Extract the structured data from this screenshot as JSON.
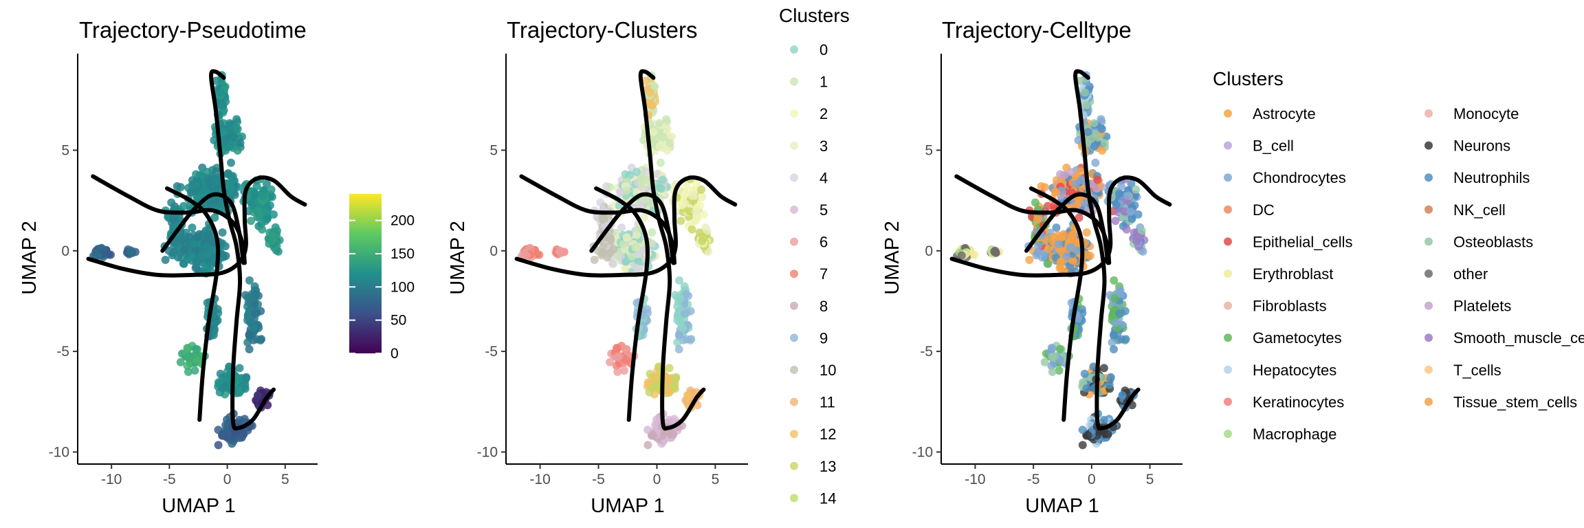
{
  "chart_data": [
    {
      "type": "scatter",
      "title": "Trajectory-Pseudotime",
      "xlabel": "UMAP 1",
      "ylabel": "UMAP 2",
      "xlim": [
        -12.8,
        7.8
      ],
      "ylim": [
        -10.6,
        9.8
      ],
      "x_ticks": [
        -10,
        -5,
        0,
        5
      ],
      "y_ticks": [
        -10,
        -5,
        0,
        5
      ],
      "grid": false,
      "color_scale": {
        "type": "continuous",
        "palette": "viridis",
        "range": [
          0,
          240
        ],
        "ticks": [
          0,
          50,
          100,
          150,
          200
        ],
        "legend_position": "right"
      }
    },
    {
      "type": "scatter",
      "title": "Trajectory-Clusters",
      "xlabel": "UMAP 1",
      "ylabel": "UMAP 2",
      "xlim": [
        -12.8,
        7.8
      ],
      "ylim": [
        -10.6,
        9.8
      ],
      "x_ticks": [
        -10,
        -5,
        0,
        5
      ],
      "y_ticks": [
        -10,
        -5,
        0,
        5
      ],
      "grid": false,
      "legend": {
        "title": "Clusters",
        "position": "right",
        "entries": [
          {
            "label": "0",
            "color": "#8ed3c7"
          },
          {
            "label": "1",
            "color": "#c9e6b4"
          },
          {
            "label": "2",
            "color": "#f3f5b4"
          },
          {
            "label": "3",
            "color": "#e8efbe"
          },
          {
            "label": "4",
            "color": "#d6d3e0"
          },
          {
            "label": "5",
            "color": "#d7b8d6"
          },
          {
            "label": "6",
            "color": "#ec9c9c"
          },
          {
            "label": "7",
            "color": "#f07f72"
          },
          {
            "label": "8",
            "color": "#c9a9b8"
          },
          {
            "label": "9",
            "color": "#8fb5d8"
          },
          {
            "label": "10",
            "color": "#c2bfae"
          },
          {
            "label": "11",
            "color": "#f1b478"
          },
          {
            "label": "12",
            "color": "#f3c064"
          },
          {
            "label": "13",
            "color": "#c8d564"
          },
          {
            "label": "14",
            "color": "#b8de6a"
          }
        ]
      }
    },
    {
      "type": "scatter",
      "title": "Trajectory-Celltype",
      "xlabel": "UMAP 1",
      "ylabel": "UMAP 2",
      "xlim": [
        -12.8,
        7.8
      ],
      "ylim": [
        -10.6,
        9.8
      ],
      "x_ticks": [
        -10,
        -5,
        0,
        5
      ],
      "y_ticks": [
        -10,
        -5,
        0,
        5
      ],
      "grid": false,
      "legend": {
        "title": "Clusters",
        "position": "right",
        "columns": 2,
        "entries": [
          {
            "label": "Astrocyte",
            "color": "#f5a445"
          },
          {
            "label": "B_cell",
            "color": "#b9a6d6"
          },
          {
            "label": "Chondrocytes",
            "color": "#7fa8d4"
          },
          {
            "label": "DC",
            "color": "#ef8a62"
          },
          {
            "label": "Epithelial_cells",
            "color": "#e34a4a"
          },
          {
            "label": "Erythroblast",
            "color": "#f0ea9c"
          },
          {
            "label": "Fibroblasts",
            "color": "#e8b4a4"
          },
          {
            "label": "Gametocytes",
            "color": "#5fb85c"
          },
          {
            "label": "Hepatocytes",
            "color": "#b4d4ec"
          },
          {
            "label": "Keratinocytes",
            "color": "#f28080"
          },
          {
            "label": "Macrophage",
            "color": "#a8d98a"
          },
          {
            "label": "Monocyte",
            "color": "#ebb0a8"
          },
          {
            "label": "Neurons",
            "color": "#3a3a3a"
          },
          {
            "label": "Neutrophils",
            "color": "#4f8fc0"
          },
          {
            "label": "NK_cell",
            "color": "#d4805a"
          },
          {
            "label": "Osteoblasts",
            "color": "#96c8a8"
          },
          {
            "label": "other",
            "color": "#6c6c6c"
          },
          {
            "label": "Platelets",
            "color": "#c4a4cc"
          },
          {
            "label": "Smooth_muscle_cells",
            "color": "#9d7cc4"
          },
          {
            "label": "T_cells",
            "color": "#f8c888"
          },
          {
            "label": "Tissue_stem_cells",
            "color": "#f5a04a"
          }
        ]
      }
    }
  ]
}
